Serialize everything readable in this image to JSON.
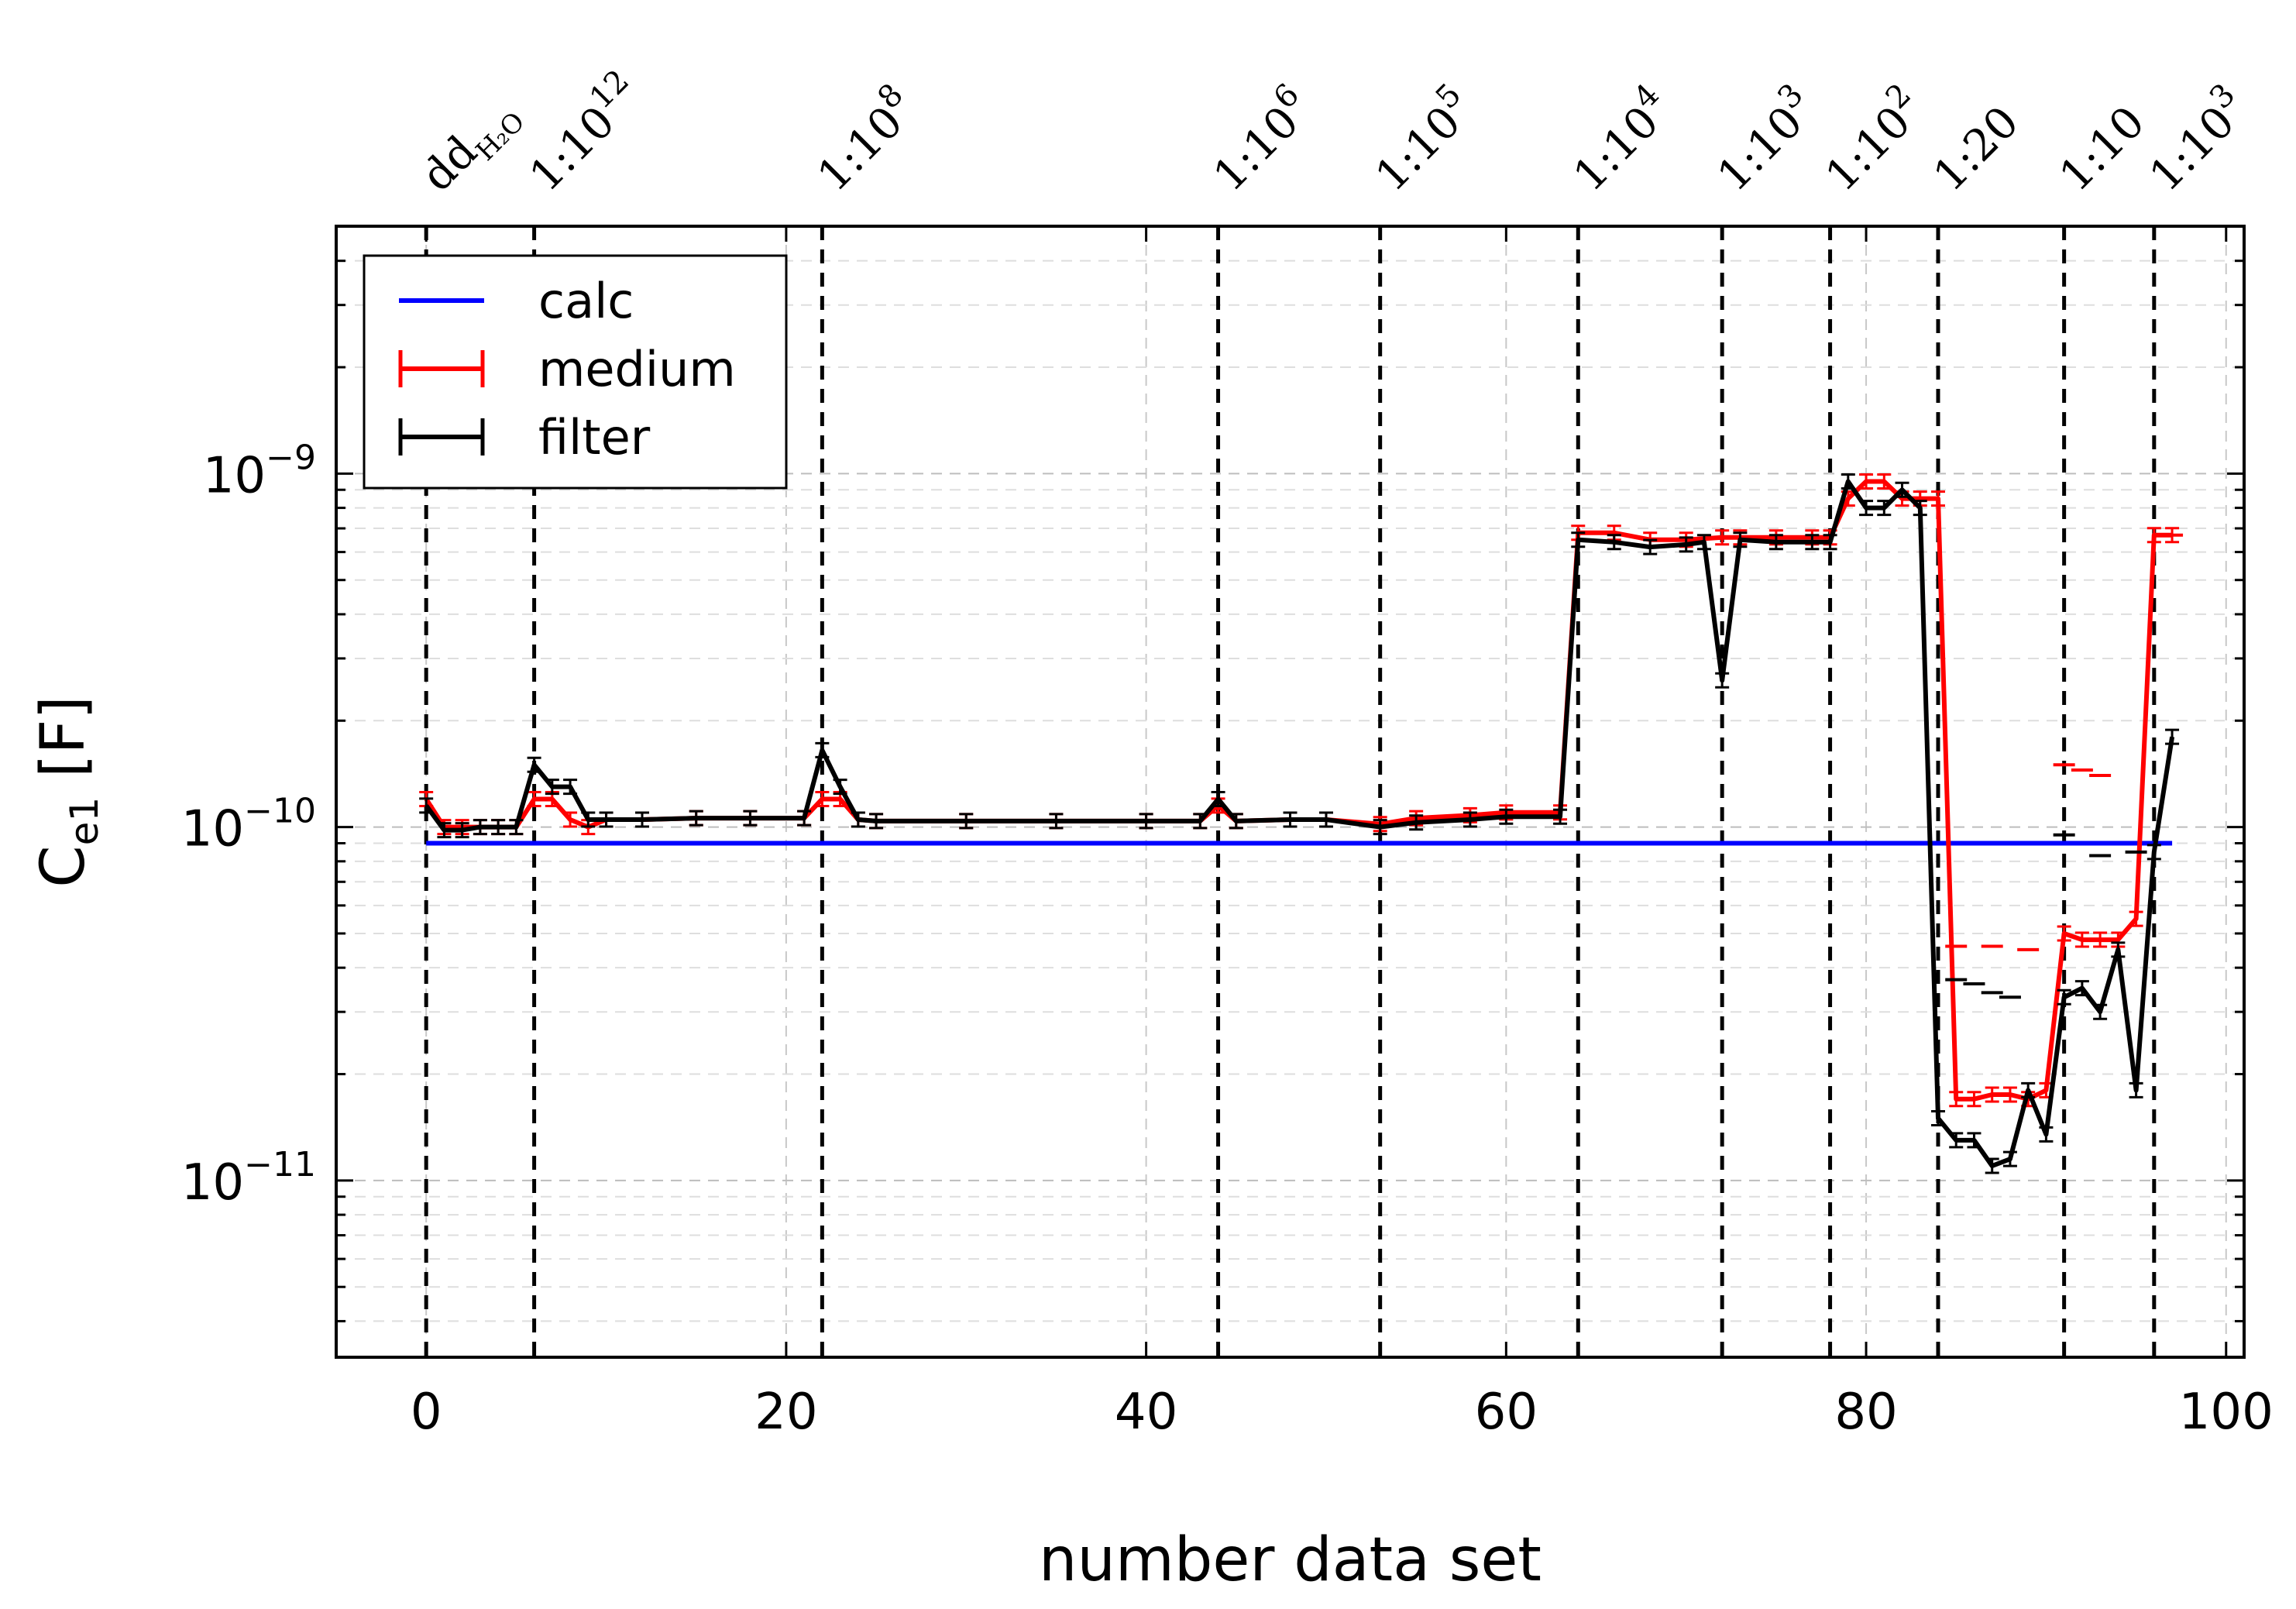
{
  "chart_data": {
    "type": "line",
    "xlabel": "number data set",
    "ylabel": {
      "main": "C",
      "sub": "e1",
      "unit": "[F]"
    },
    "xlim": [
      -5,
      101
    ],
    "ylim_log10": [
      -11.5,
      -8.3
    ],
    "xticks": [
      0,
      20,
      40,
      60,
      80,
      100
    ],
    "yticks": [
      {
        "exp": -11,
        "base": "10",
        "sup": "−11"
      },
      {
        "exp": -10,
        "base": "10",
        "sup": "−10"
      },
      {
        "exp": -9,
        "base": "10",
        "sup": "−9"
      }
    ],
    "grid": true,
    "legend_position": "top-left",
    "legend": [
      "calc",
      "medium",
      "filter"
    ],
    "dilution_markers": [
      {
        "x": 0,
        "base": "dd",
        "sub": "H₂O",
        "sup": ""
      },
      {
        "x": 6,
        "base": "1:10",
        "sub": "",
        "sup": "12"
      },
      {
        "x": 22,
        "base": "1:10",
        "sub": "",
        "sup": "8"
      },
      {
        "x": 44,
        "base": "1:10",
        "sub": "",
        "sup": "6"
      },
      {
        "x": 53,
        "base": "1:10",
        "sub": "",
        "sup": "5"
      },
      {
        "x": 64,
        "base": "1:10",
        "sub": "",
        "sup": "4"
      },
      {
        "x": 72,
        "base": "1:10",
        "sub": "",
        "sup": "3"
      },
      {
        "x": 78,
        "base": "1:10",
        "sub": "",
        "sup": "2"
      },
      {
        "x": 84,
        "base": "1:20",
        "sub": "",
        "sup": ""
      },
      {
        "x": 91,
        "base": "1:10",
        "sub": "",
        "sup": ""
      },
      {
        "x": 96,
        "base": "1:10",
        "sub": "",
        "sup": "3"
      }
    ],
    "series": [
      {
        "name": "calc",
        "color": "#0000ff",
        "x": [
          0,
          97
        ],
        "y": [
          9e-11,
          9e-11
        ]
      },
      {
        "name": "medium",
        "color": "#ff0000",
        "x": [
          0,
          1,
          2,
          3,
          4,
          5,
          6,
          7,
          8,
          9,
          10,
          12,
          15,
          18,
          21,
          22,
          23,
          24,
          25,
          30,
          35,
          40,
          43,
          44,
          45,
          48,
          50,
          53,
          55,
          58,
          60,
          63,
          64,
          66,
          68,
          70,
          72,
          73,
          75,
          77,
          78,
          79,
          80,
          81,
          82,
          83,
          84,
          85,
          86,
          87,
          88,
          89,
          90,
          91,
          92,
          93,
          94,
          95,
          96,
          97
        ],
        "y": [
          1.2e-10,
          1e-10,
          1e-10,
          1e-10,
          1e-10,
          1e-10,
          1.2e-10,
          1.2e-10,
          1.05e-10,
          1e-10,
          1.05e-10,
          1.05e-10,
          1.06e-10,
          1.06e-10,
          1.06e-10,
          1.2e-10,
          1.2e-10,
          1.05e-10,
          1.04e-10,
          1.04e-10,
          1.04e-10,
          1.04e-10,
          1.04e-10,
          1.15e-10,
          1.04e-10,
          1.05e-10,
          1.05e-10,
          1.02e-10,
          1.06e-10,
          1.08e-10,
          1.1e-10,
          1.1e-10,
          6.8e-10,
          6.8e-10,
          6.5e-10,
          6.5e-10,
          6.6e-10,
          6.6e-10,
          6.6e-10,
          6.6e-10,
          6.6e-10,
          8.5e-10,
          9.5e-10,
          9.5e-10,
          8.5e-10,
          8.5e-10,
          8.5e-10,
          1.7e-11,
          1.7e-11,
          1.75e-11,
          1.75e-11,
          1.7e-11,
          1.8e-11,
          5e-11,
          4.8e-11,
          4.8e-11,
          4.8e-11,
          5.5e-11,
          6.7e-10,
          6.7e-10
        ]
      },
      {
        "name": "filter",
        "color": "#000000",
        "x": [
          0,
          1,
          2,
          3,
          4,
          5,
          6,
          7,
          8,
          9,
          10,
          12,
          15,
          18,
          21,
          22,
          23,
          24,
          25,
          30,
          35,
          40,
          43,
          44,
          45,
          48,
          50,
          53,
          55,
          58,
          60,
          63,
          64,
          66,
          68,
          70,
          71,
          72,
          73,
          75,
          77,
          78,
          79,
          80,
          81,
          82,
          83,
          84,
          85,
          86,
          87,
          88,
          89,
          90,
          91,
          92,
          93,
          94,
          95,
          96,
          97
        ],
        "y": [
          1.15e-10,
          9.8e-11,
          9.8e-11,
          1e-10,
          1e-10,
          1e-10,
          1.5e-10,
          1.3e-10,
          1.3e-10,
          1.05e-10,
          1.05e-10,
          1.05e-10,
          1.06e-10,
          1.06e-10,
          1.06e-10,
          1.65e-10,
          1.3e-10,
          1.05e-10,
          1.04e-10,
          1.04e-10,
          1.04e-10,
          1.04e-10,
          1.04e-10,
          1.2e-10,
          1.04e-10,
          1.05e-10,
          1.05e-10,
          1e-10,
          1.03e-10,
          1.05e-10,
          1.07e-10,
          1.07e-10,
          6.5e-10,
          6.4e-10,
          6.2e-10,
          6.3e-10,
          6.4e-10,
          2.6e-10,
          6.5e-10,
          6.4e-10,
          6.4e-10,
          6.4e-10,
          9.5e-10,
          8e-10,
          8e-10,
          9e-10,
          8e-10,
          1.5e-11,
          1.3e-11,
          1.3e-11,
          1.1e-11,
          1.15e-11,
          1.8e-11,
          1.35e-11,
          3.3e-11,
          3.5e-11,
          3e-11,
          4.5e-11,
          1.8e-11,
          8.5e-11,
          1.8e-10
        ]
      }
    ],
    "detached_markers": [
      {
        "series": "medium",
        "points": [
          [
            85,
            4.6e-11
          ],
          [
            87,
            4.6e-11
          ],
          [
            89,
            4.5e-11
          ],
          [
            91,
            1.5e-10
          ],
          [
            92,
            1.45e-10
          ],
          [
            93,
            1.4e-10
          ],
          [
            97,
            6.7e-10
          ]
        ]
      },
      {
        "series": "filter",
        "points": [
          [
            85,
            3.7e-11
          ],
          [
            86,
            3.6e-11
          ],
          [
            87,
            3.4e-11
          ],
          [
            88,
            3.3e-11
          ],
          [
            91,
            9.5e-11
          ],
          [
            93,
            8.3e-11
          ],
          [
            95,
            8.5e-11
          ]
        ]
      }
    ]
  }
}
